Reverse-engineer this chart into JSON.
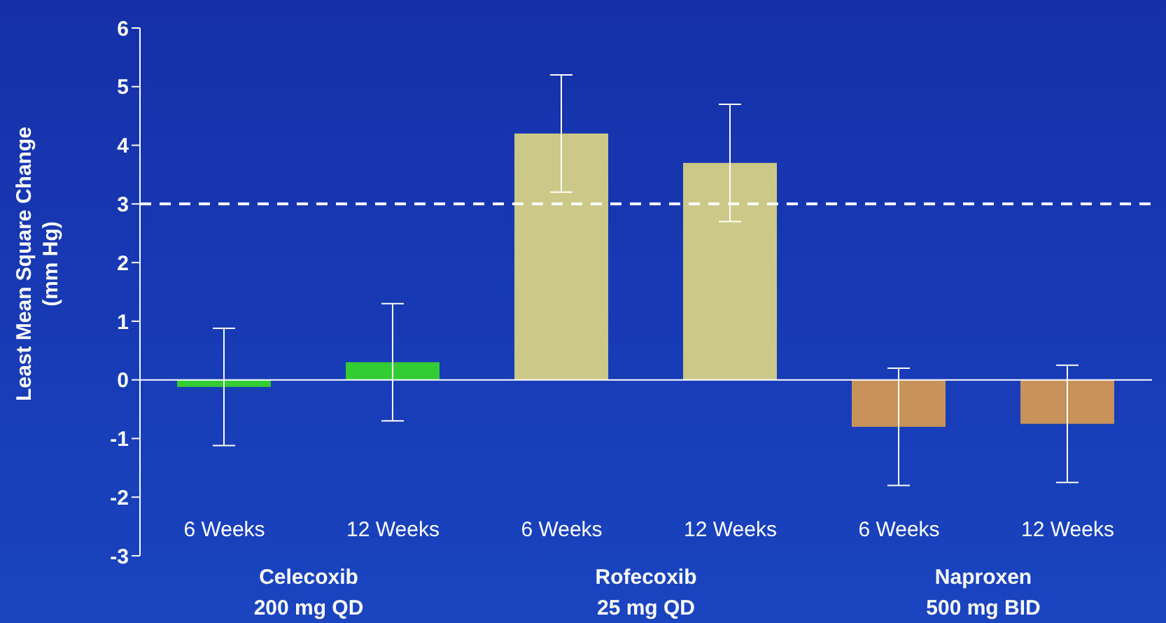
{
  "chart_data": {
    "type": "bar",
    "ylabel": "Least Mean Square Change\n(mm Hg)",
    "categories": [
      "6 Weeks",
      "12 Weeks",
      "6 Weeks",
      "12 Weeks",
      "6 Weeks",
      "12 Weeks"
    ],
    "values": [
      -0.12,
      0.3,
      4.2,
      3.7,
      -0.8,
      -0.75
    ],
    "colors": [
      "#33cc33",
      "#33cc33",
      "#ccc888",
      "#ccc888",
      "#c8935a",
      "#c8935a"
    ],
    "errors": [
      1,
      1,
      1,
      1,
      1,
      1
    ],
    "ylim": [
      -3,
      6
    ],
    "yticks": [
      -3,
      -2,
      -1,
      0,
      1,
      2,
      3,
      4,
      5,
      6
    ],
    "ref_lines": [
      {
        "axis": "y",
        "value": 3,
        "color": "#ffffff",
        "line_style": "dashed"
      }
    ],
    "annotations": [
      "Celecoxib\n200 mg QD",
      "Rofecoxib\n25 mg QD",
      "Naproxen\n500 mg BID"
    ]
  }
}
